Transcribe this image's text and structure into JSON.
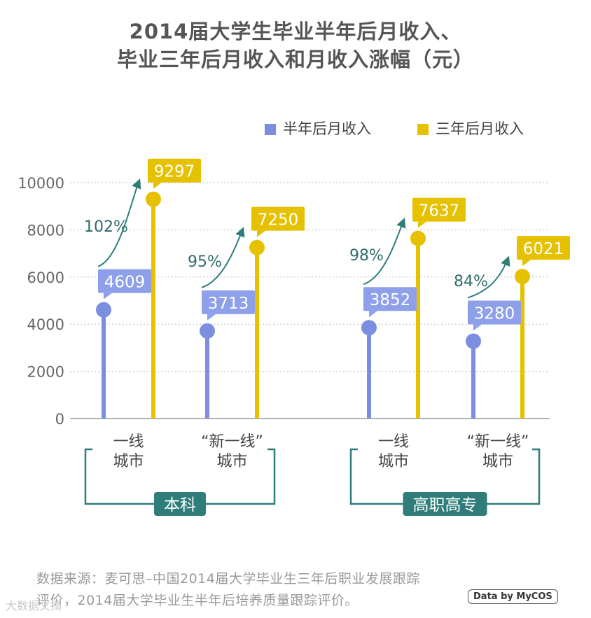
{
  "title_lines": [
    "2014届大学生毕业半年后月收入、",
    "毕业三年后月收入和月收入涨幅（元）"
  ],
  "legend": [
    {
      "label": "半年后月收入",
      "color": "#7B8EE0"
    },
    {
      "label": "三年后月收入",
      "color": "#E5C100"
    }
  ],
  "colors": {
    "half_year": "#7B8EE0",
    "three_year": "#E5C100",
    "arrow": "#2E7D7A",
    "group_box": "#2E7D7A",
    "group_label_bg": "#2E7D7A"
  },
  "chart_data": {
    "type": "bar",
    "ylim": [
      0,
      10000
    ],
    "yticks": [
      "0",
      "2000",
      "4000",
      "6000",
      "8000",
      "10000"
    ],
    "grid": "dotted horizontal",
    "legend_position": "top-right",
    "categories": [
      {
        "lines": [
          "一线",
          "城市"
        ]
      },
      {
        "lines": [
          "“新一线”",
          "城市"
        ]
      },
      {
        "lines": [
          "一线",
          "城市"
        ]
      },
      {
        "lines": [
          "“新一线”",
          "城市"
        ]
      }
    ],
    "series": [
      {
        "name": "半年后月收入",
        "values": [
          4609,
          3713,
          3852,
          3280
        ]
      },
      {
        "name": "三年后月收入",
        "values": [
          9297,
          7250,
          7637,
          6021
        ]
      }
    ],
    "growth_labels": [
      "102%",
      "95%",
      "98%",
      "84%"
    ],
    "groups": [
      {
        "label": "本科",
        "categories": [
          0,
          1
        ]
      },
      {
        "label": "高职高专",
        "categories": [
          2,
          3
        ]
      }
    ]
  },
  "source_lines": [
    "数据来源：麦可思–中国2014届大学毕业生三年后职业发展跟踪",
    "评价，2014届大学毕业生半年后培养质量跟踪评价。"
  ],
  "credit": "Data by MyCOS",
  "watermark": "大数据文摘"
}
